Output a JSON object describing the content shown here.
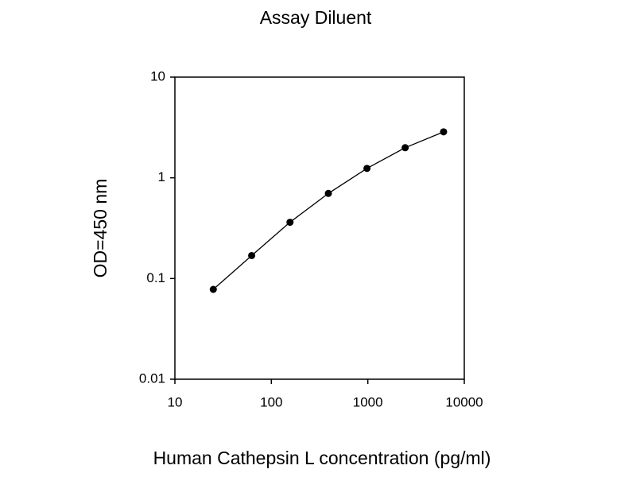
{
  "chart_data": {
    "type": "line",
    "title": "Assay Diluent",
    "x_label": "Human Cathepsin L concentration (pg/ml)",
    "y_label": "OD=450 nm",
    "x": [
      25,
      62.5,
      156,
      390,
      980,
      2440,
      6100
    ],
    "series": [
      {
        "color": "#000000",
        "values": [
          0.078,
          0.169,
          0.362,
          0.7,
          1.24,
          1.99,
          2.86
        ]
      }
    ],
    "xscale": "log",
    "yscale": "log",
    "xlim": [
      10,
      10000
    ],
    "ylim": [
      0.01,
      10
    ],
    "xticks": [
      10,
      100,
      1000,
      10000
    ],
    "yticks": [
      0.01,
      0.1,
      1,
      10
    ]
  }
}
